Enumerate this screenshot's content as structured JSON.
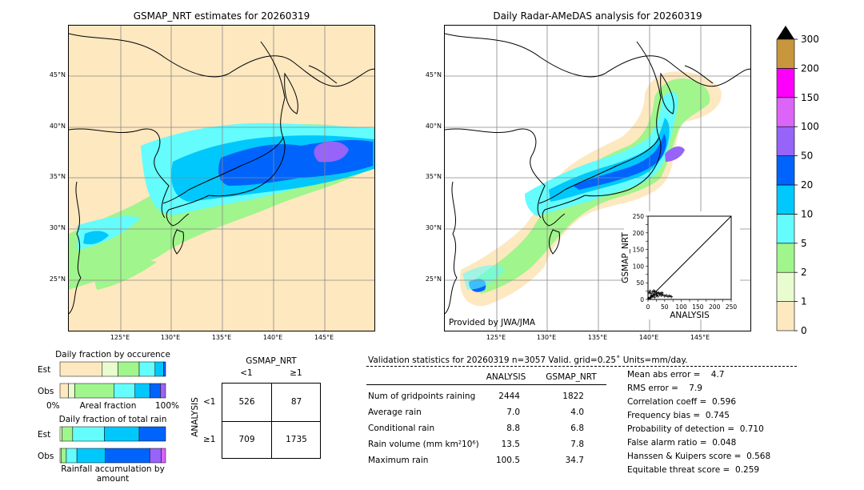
{
  "left_map": {
    "title": "GSMAP_NRT estimates for 20260319",
    "lat_labels": [
      "45°N",
      "40°N",
      "35°N",
      "30°N",
      "25°N"
    ],
    "lon_labels": [
      "125°E",
      "130°E",
      "135°E",
      "140°E",
      "145°E"
    ]
  },
  "right_map": {
    "title": "Daily Radar-AMeDAS analysis for 20260319",
    "lat_labels": [
      "45°N",
      "40°N",
      "35°N",
      "30°N",
      "25°N"
    ],
    "lon_labels": [
      "125°E",
      "130°E",
      "135°E",
      "140°E",
      "145°E"
    ],
    "credit": "Provided by JWA/JMA"
  },
  "scatter": {
    "xlabel": "ANALYSIS",
    "ylabel": "GSMAP_NRT",
    "ticks": [
      "0",
      "25",
      "50",
      "75",
      "100",
      "125",
      "150",
      "175",
      "200",
      "225",
      "250"
    ],
    "yticks": [
      "0",
      "50",
      "100",
      "150",
      "200",
      "250"
    ],
    "xticks": [
      "0",
      "50",
      "100",
      "150",
      "200",
      "250"
    ]
  },
  "colorbar": {
    "levels": [
      "0",
      "1",
      "2",
      "5",
      "10",
      "20",
      "50",
      "100",
      "150",
      "200",
      "300"
    ],
    "colors": [
      "#fde8c0",
      "#e8fcd0",
      "#a0f58c",
      "#64fcfc",
      "#00c8fc",
      "#0064fc",
      "#9664f8",
      "#dc64f8",
      "#fc00fc",
      "#c8963c"
    ],
    "over_color": "#000000"
  },
  "occurrence": {
    "title": "Daily fraction by occurence",
    "rows": [
      "Est",
      "Obs"
    ],
    "axis_left": "0%",
    "axis_mid": "Areal fraction",
    "axis_right": "100%"
  },
  "total_rain": {
    "title": "Daily fraction of total rain",
    "rows": [
      "Est",
      "Obs"
    ],
    "footer": "Rainfall accumulation by amount"
  },
  "contingency": {
    "title": "GSMAP_NRT",
    "col_labels": [
      "<1",
      "≥1"
    ],
    "row_axis": "ANALYSIS",
    "row_labels": [
      "<1",
      "≥1"
    ],
    "cells": [
      [
        "526",
        "87"
      ],
      [
        "709",
        "1735"
      ]
    ]
  },
  "validation": {
    "header": "Validation statistics for 20260319  n=3057 Valid. grid=0.25˚ Units=mm/day.",
    "col_analysis": "ANALYSIS",
    "col_gsmap": "GSMAP_NRT",
    "rows": [
      {
        "label": "Num of gridpoints raining",
        "analysis": "2444",
        "gsmap": "1822"
      },
      {
        "label": "Average rain",
        "analysis": "7.0",
        "gsmap": "4.0"
      },
      {
        "label": "Conditional rain",
        "analysis": "8.8",
        "gsmap": "6.8"
      },
      {
        "label": "Rain volume (mm km²10⁶)",
        "analysis": "13.5",
        "gsmap": "7.8"
      },
      {
        "label": "Maximum rain",
        "analysis": "100.5",
        "gsmap": "34.7"
      }
    ],
    "scores": [
      "Mean abs error =    4.7",
      "RMS error =    7.9",
      "Correlation coeff =  0.596",
      "Frequency bias =  0.745",
      "Probability of detection =  0.710",
      "False alarm ratio =  0.048",
      "Hanssen & Kuipers score =  0.568",
      "Equitable threat score =  0.259"
    ]
  },
  "chart_data": [
    {
      "type": "heatmap",
      "title": "GSMAP_NRT estimates for 20260319",
      "xlabel": "",
      "ylabel": "",
      "x_ticks": [
        "125°E",
        "130°E",
        "135°E",
        "140°E",
        "145°E"
      ],
      "y_ticks": [
        "45°N",
        "40°N",
        "35°N",
        "30°N",
        "25°N"
      ],
      "colorscale_levels_mm_per_day": [
        0,
        1,
        2,
        5,
        10,
        20,
        50,
        100,
        150,
        200,
        300
      ]
    },
    {
      "type": "heatmap",
      "title": "Daily Radar-AMeDAS analysis for 20260319",
      "xlabel": "",
      "ylabel": "",
      "x_ticks": [
        "125°E",
        "130°E",
        "135°E",
        "140°E",
        "145°E"
      ],
      "y_ticks": [
        "45°N",
        "40°N",
        "35°N",
        "30°N",
        "25°N"
      ],
      "colorscale_levels_mm_per_day": [
        0,
        1,
        2,
        5,
        10,
        20,
        50,
        100,
        150,
        200,
        300
      ]
    },
    {
      "type": "scatter",
      "title": "",
      "xlabel": "ANALYSIS",
      "ylabel": "GSMAP_NRT",
      "xlim": [
        0,
        250
      ],
      "ylim": [
        0,
        250
      ],
      "diagonal": true,
      "points_approx": [
        [
          2,
          3
        ],
        [
          5,
          4
        ],
        [
          8,
          6
        ],
        [
          10,
          12
        ],
        [
          12,
          8
        ],
        [
          15,
          10
        ],
        [
          18,
          14
        ],
        [
          20,
          7
        ],
        [
          22,
          16
        ],
        [
          25,
          12
        ],
        [
          28,
          18
        ],
        [
          30,
          10
        ],
        [
          35,
          15
        ],
        [
          40,
          12
        ],
        [
          45,
          14
        ],
        [
          50,
          10
        ],
        [
          55,
          12
        ],
        [
          60,
          9
        ],
        [
          65,
          11
        ],
        [
          70,
          8
        ],
        [
          3,
          20
        ],
        [
          6,
          25
        ],
        [
          9,
          18
        ],
        [
          14,
          22
        ],
        [
          17,
          26
        ],
        [
          21,
          24
        ],
        [
          26,
          21
        ],
        [
          32,
          20
        ],
        [
          38,
          18
        ],
        [
          42,
          20
        ]
      ]
    },
    {
      "type": "bar",
      "title": "Daily fraction by occurence",
      "categories": [
        "Est",
        "Obs"
      ],
      "series": [
        {
          "name": "0",
          "values": [
            0.4,
            0.08
          ]
        },
        {
          "name": "1",
          "values": [
            0.15,
            0.06
          ]
        },
        {
          "name": "2",
          "values": [
            0.2,
            0.37
          ]
        },
        {
          "name": "5",
          "values": [
            0.15,
            0.2
          ]
        },
        {
          "name": "10",
          "values": [
            0.08,
            0.14
          ]
        },
        {
          "name": "20",
          "values": [
            0.02,
            0.1
          ]
        },
        {
          "name": "50",
          "values": [
            0.0,
            0.05
          ]
        }
      ],
      "xlim": [
        0,
        1
      ]
    },
    {
      "type": "bar",
      "title": "Daily fraction of total rain",
      "categories": [
        "Est",
        "Obs"
      ],
      "series": [
        {
          "name": "1",
          "values": [
            0.02,
            0.01
          ]
        },
        {
          "name": "2",
          "values": [
            0.1,
            0.05
          ]
        },
        {
          "name": "5",
          "values": [
            0.3,
            0.1
          ]
        },
        {
          "name": "10",
          "values": [
            0.33,
            0.27
          ]
        },
        {
          "name": "20",
          "values": [
            0.25,
            0.42
          ]
        },
        {
          "name": "50",
          "values": [
            0.0,
            0.11
          ]
        },
        {
          "name": "100",
          "values": [
            0.0,
            0.04
          ]
        }
      ],
      "xlim": [
        0,
        1
      ]
    },
    {
      "type": "table",
      "title": "GSMAP_NRT",
      "rows": [
        [
          "",
          "<1",
          "≥1"
        ],
        [
          "<1",
          "526",
          "87"
        ],
        [
          "≥1",
          "709",
          "1735"
        ]
      ]
    }
  ]
}
